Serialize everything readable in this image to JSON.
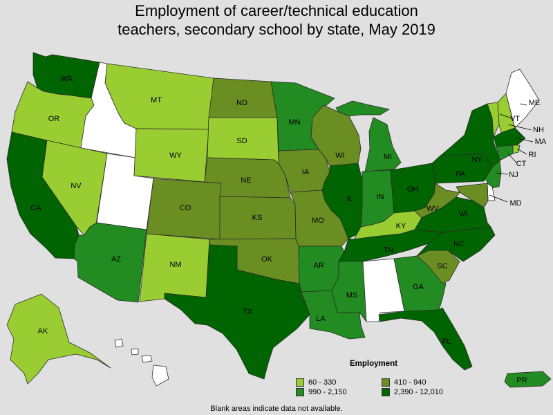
{
  "title_line1": "Employment of career/technical education",
  "title_line2": "teachers, secondary school by state, May 2019",
  "legend": {
    "title": "Employment",
    "items": [
      {
        "key": "c1",
        "label": "60 - 330",
        "color": "#9acd32"
      },
      {
        "key": "c2",
        "label": "410 - 940",
        "color": "#6b8e23"
      },
      {
        "key": "c3",
        "label": "990 - 2,150",
        "color": "#228b22"
      },
      {
        "key": "c4",
        "label": "2,390 - 12,010",
        "color": "#006400"
      }
    ]
  },
  "no_data_color": "#ffffff",
  "footnote": "Blank areas indicate data not available.",
  "states": [
    {
      "code": "WA",
      "category": "c4"
    },
    {
      "code": "OR",
      "category": "c1"
    },
    {
      "code": "CA",
      "category": "c4"
    },
    {
      "code": "ID",
      "category": null
    },
    {
      "code": "NV",
      "category": "c1"
    },
    {
      "code": "UT",
      "category": null
    },
    {
      "code": "AZ",
      "category": "c3"
    },
    {
      "code": "MT",
      "category": "c1"
    },
    {
      "code": "WY",
      "category": "c1"
    },
    {
      "code": "CO",
      "category": "c2"
    },
    {
      "code": "NM",
      "category": "c1"
    },
    {
      "code": "ND",
      "category": "c2"
    },
    {
      "code": "SD",
      "category": "c1"
    },
    {
      "code": "NE",
      "category": "c2"
    },
    {
      "code": "KS",
      "category": "c2"
    },
    {
      "code": "OK",
      "category": "c2"
    },
    {
      "code": "TX",
      "category": "c4"
    },
    {
      "code": "MN",
      "category": "c3"
    },
    {
      "code": "IA",
      "category": "c2"
    },
    {
      "code": "MO",
      "category": "c2"
    },
    {
      "code": "AR",
      "category": "c3"
    },
    {
      "code": "LA",
      "category": "c3"
    },
    {
      "code": "WI",
      "category": "c2"
    },
    {
      "code": "IL",
      "category": "c4"
    },
    {
      "code": "MI",
      "category": "c3"
    },
    {
      "code": "IN",
      "category": "c3"
    },
    {
      "code": "OH",
      "category": "c4"
    },
    {
      "code": "KY",
      "category": "c1"
    },
    {
      "code": "TN",
      "category": "c4"
    },
    {
      "code": "MS",
      "category": "c3"
    },
    {
      "code": "AL",
      "category": null
    },
    {
      "code": "GA",
      "category": "c3"
    },
    {
      "code": "FL",
      "category": "c4"
    },
    {
      "code": "SC",
      "category": "c2"
    },
    {
      "code": "NC",
      "category": "c4"
    },
    {
      "code": "VA",
      "category": "c4"
    },
    {
      "code": "WV",
      "category": "c2"
    },
    {
      "code": "PA",
      "category": "c4"
    },
    {
      "code": "NY",
      "category": "c4"
    },
    {
      "code": "VT",
      "category": "c1"
    },
    {
      "code": "NH",
      "category": "c1"
    },
    {
      "code": "ME",
      "category": null
    },
    {
      "code": "MA",
      "category": "c4"
    },
    {
      "code": "RI",
      "category": "c1"
    },
    {
      "code": "CT",
      "category": "c3"
    },
    {
      "code": "NJ",
      "category": "c3"
    },
    {
      "code": "DE",
      "category": null
    },
    {
      "code": "MD",
      "category": "c2"
    },
    {
      "code": "AK",
      "category": "c1"
    },
    {
      "code": "HI",
      "category": null
    },
    {
      "code": "PR",
      "category": "c3"
    }
  ]
}
